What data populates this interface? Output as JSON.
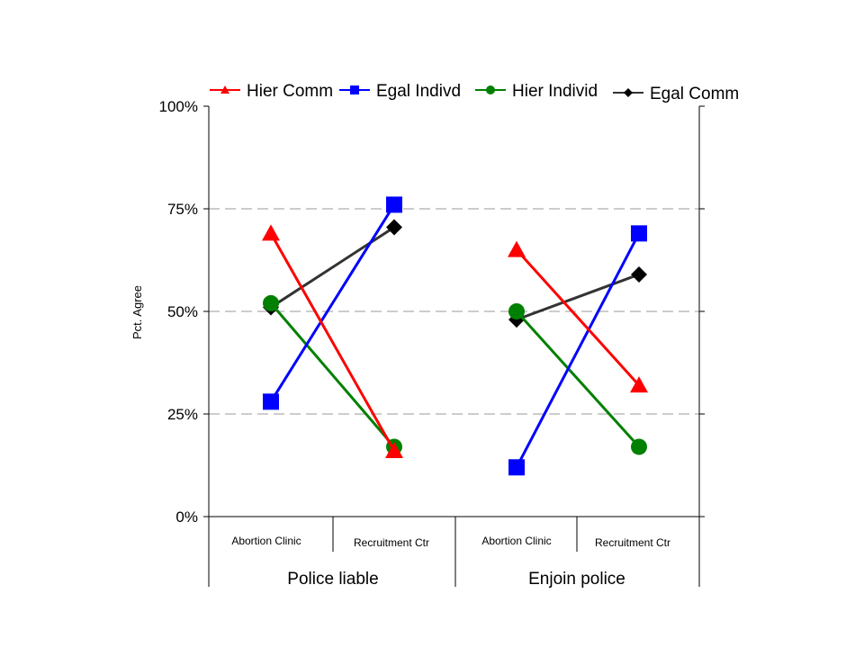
{
  "chart_data": {
    "type": "line",
    "ylabel": "Pct. Agree",
    "ylim": [
      0,
      100
    ],
    "y_ticks": [
      "0%",
      "25%",
      "50%",
      "75%",
      "100%"
    ],
    "grid": "horizontal dashed",
    "legend_position": "top",
    "groups": [
      {
        "label": "Police liable",
        "categories": [
          "Abortion Clinic",
          "Recruitment Ctr"
        ]
      },
      {
        "label": "Enjoin police",
        "categories": [
          "Abortion Clinic",
          "Recruitment Ctr"
        ]
      }
    ],
    "series": [
      {
        "name": "Hier Comm",
        "color": "#ff0000",
        "marker": "triangle",
        "values": [
          [
            69,
            16
          ],
          [
            65,
            32
          ]
        ]
      },
      {
        "name": "Egal Indivd",
        "color": "#0000ff",
        "marker": "square",
        "values": [
          [
            28,
            76
          ],
          [
            12,
            69
          ]
        ]
      },
      {
        "name": "Hier Individ",
        "color": "#008000",
        "marker": "circle",
        "values": [
          [
            52,
            17
          ],
          [
            50,
            17
          ]
        ]
      },
      {
        "name": "Egal Comm",
        "color": "#000000",
        "line_color": "#333333",
        "marker": "diamond",
        "values": [
          [
            51,
            70.5
          ],
          [
            48,
            59
          ]
        ]
      }
    ]
  }
}
